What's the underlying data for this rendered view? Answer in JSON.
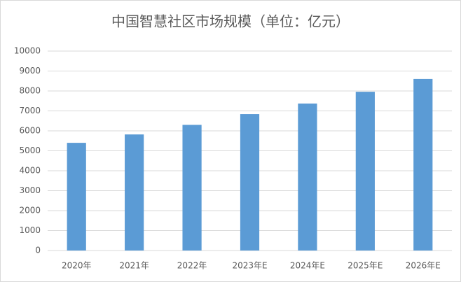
{
  "chart_data": {
    "type": "bar",
    "title": "中国智慧社区市场规模（单位：亿元）",
    "categories": [
      "2020年",
      "2021年",
      "2022年",
      "2023年E",
      "2024年E",
      "2025年E",
      "2026年E"
    ],
    "values": [
      5400,
      5820,
      6300,
      6840,
      7370,
      7960,
      8600
    ],
    "color": "#5b9bd5",
    "ylim": [
      0,
      10000
    ],
    "yticks": [
      0,
      1000,
      2000,
      3000,
      4000,
      5000,
      6000,
      7000,
      8000,
      9000,
      10000
    ],
    "grid": true
  }
}
